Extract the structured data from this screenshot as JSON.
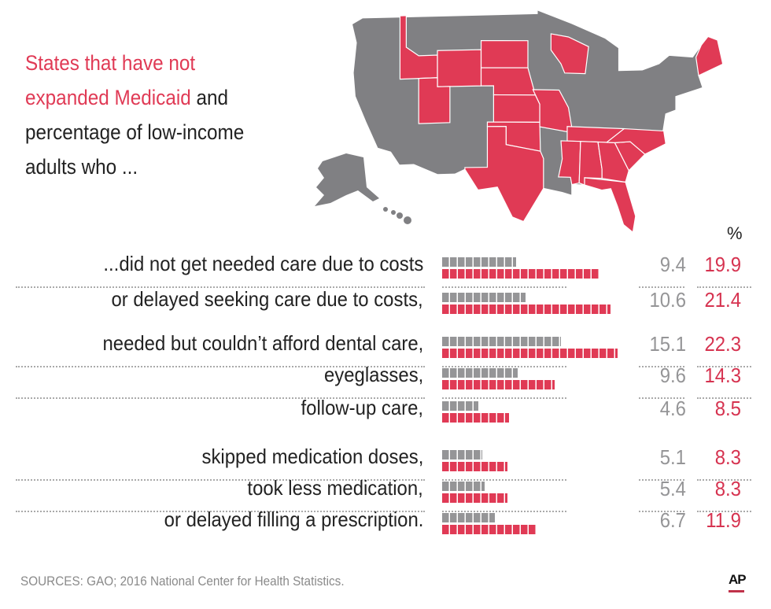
{
  "title": {
    "highlight": "States that have not expanded Medicaid",
    "rest": " and percentage of low-income adults who ..."
  },
  "map": {
    "highlight_color": "#e03a55",
    "base_color": "#808083",
    "highlighted_states": [
      "Idaho",
      "Wyoming",
      "Utah",
      "South Dakota",
      "Nebraska",
      "Kansas",
      "Oklahoma",
      "Texas",
      "Missouri",
      "Wisconsin",
      "Tennessee",
      "Mississippi",
      "Alabama",
      "Georgia",
      "South Carolina",
      "North Carolina",
      "Florida",
      "Maine"
    ]
  },
  "chart_data": {
    "type": "bar",
    "unit_label": "%",
    "colors": {
      "expanded": "#959597",
      "not_expanded": "#e03a55"
    },
    "categories": [
      "...did not get needed care due to costs",
      "or delayed seeking care due to costs,",
      "needed but couldn’t afford dental care,",
      "eyeglasses,",
      "follow-up care,",
      "skipped medication doses,",
      "took less medication,",
      "or delayed filling a prescription."
    ],
    "series": [
      {
        "values": [
          9.4,
          10.6,
          15.1,
          9.6,
          4.6,
          5.1,
          5.4,
          6.7
        ]
      },
      {
        "values": [
          19.9,
          21.4,
          22.3,
          14.3,
          8.5,
          8.3,
          8.3,
          11.9
        ]
      }
    ],
    "value_labels": [
      [
        "9.4",
        "10.6",
        "15.1",
        "9.6",
        "4.6",
        "5.1",
        "5.4",
        "6.7"
      ],
      [
        "19.9",
        "21.4",
        "22.3",
        "14.3",
        "8.5",
        "8.3",
        "8.3",
        "11.9"
      ]
    ]
  },
  "footer": {
    "source": "SOURCES: GAO; 2016 National Center for Health Statistics.",
    "logo": "AP"
  }
}
